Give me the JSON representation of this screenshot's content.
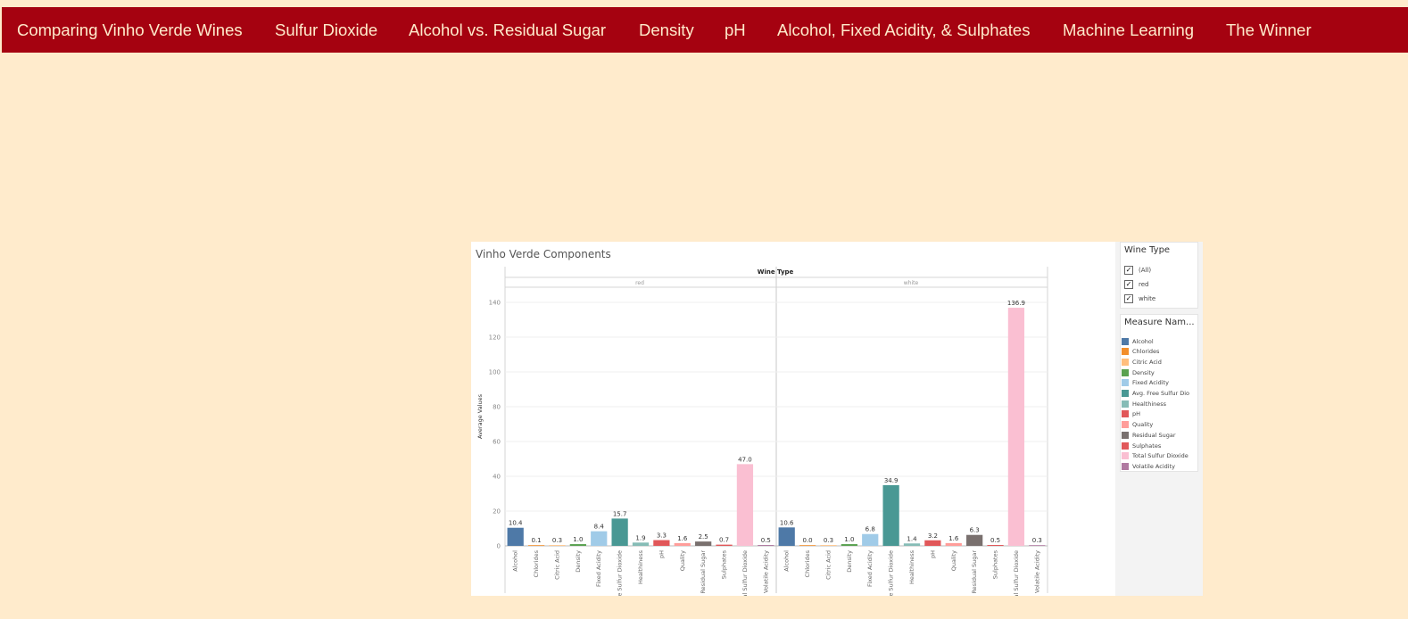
{
  "nav": {
    "items": [
      "Comparing Vinho Verde Wines",
      "Sulfur Dioxide",
      "Alcohol vs. Residual Sugar",
      "Density",
      "pH",
      "Alcohol, Fixed Acidity, & Sulphates",
      "Machine Learning",
      "The Winner"
    ],
    "background": "#a50210",
    "text_color": "#ffebcc"
  },
  "page": {
    "background": "#ffebcc"
  },
  "dashboard": {
    "title": "Vinho Verde Components",
    "filter": {
      "title": "Wine Type",
      "options": [
        {
          "label": "(All)",
          "checked": true
        },
        {
          "label": "red",
          "checked": true
        },
        {
          "label": "white",
          "checked": true
        }
      ]
    },
    "legend": {
      "title": "Measure Nam...",
      "items": [
        {
          "label": "Alcohol",
          "color": "#4e79a7"
        },
        {
          "label": "Chlorides",
          "color": "#f28e2b"
        },
        {
          "label": "Citric Acid",
          "color": "#ffbe7d"
        },
        {
          "label": "Density",
          "color": "#59a14f"
        },
        {
          "label": "Fixed Acidity",
          "color": "#a0cbe8"
        },
        {
          "label": "Avg. Free Sulfur Dio",
          "color": "#499894"
        },
        {
          "label": "Healthiness",
          "color": "#86bcb6"
        },
        {
          "label": "pH",
          "color": "#e15759"
        },
        {
          "label": "Quality",
          "color": "#ff9d9a"
        },
        {
          "label": "Residual Sugar",
          "color": "#79706e"
        },
        {
          "label": "Sulphates",
          "color": "#e15759"
        },
        {
          "label": "Total Sulfur Dioxide",
          "color": "#fabfd2"
        },
        {
          "label": "Volatile Acidity",
          "color": "#b07aa1"
        }
      ]
    }
  },
  "chart_data": {
    "type": "bar",
    "column_header": "Wine Type",
    "panels": [
      "red",
      "white"
    ],
    "ylabel": "Average Values",
    "ylim": [
      0,
      140
    ],
    "yticks": [
      0,
      20,
      40,
      60,
      80,
      100,
      120,
      140
    ],
    "grid": true,
    "legend_position": "right",
    "categories": [
      "Alcohol",
      "Chlorides",
      "Citric Acid",
      "Density",
      "Fixed Acidity",
      "Avg. Free Sulfur Dioxide",
      "Healthiness",
      "pH",
      "Quality",
      "Residual Sugar",
      "Sulphates",
      "Total Sulfur Dioxide",
      "Volatile Acidity"
    ],
    "colors": [
      "#4e79a7",
      "#f28e2b",
      "#ffbe7d",
      "#59a14f",
      "#a0cbe8",
      "#499894",
      "#86bcb6",
      "#e15759",
      "#ff9d9a",
      "#79706e",
      "#e15759",
      "#fabfd2",
      "#b07aa1"
    ],
    "series": [
      {
        "name": "red",
        "values": [
          10.4,
          0.1,
          0.3,
          1.0,
          8.4,
          15.7,
          1.9,
          3.3,
          1.6,
          2.5,
          0.7,
          47.0,
          0.5
        ]
      },
      {
        "name": "white",
        "values": [
          10.6,
          0.0,
          0.3,
          1.0,
          6.8,
          34.9,
          1.4,
          3.2,
          1.6,
          6.3,
          0.5,
          136.9,
          0.3
        ]
      }
    ]
  }
}
